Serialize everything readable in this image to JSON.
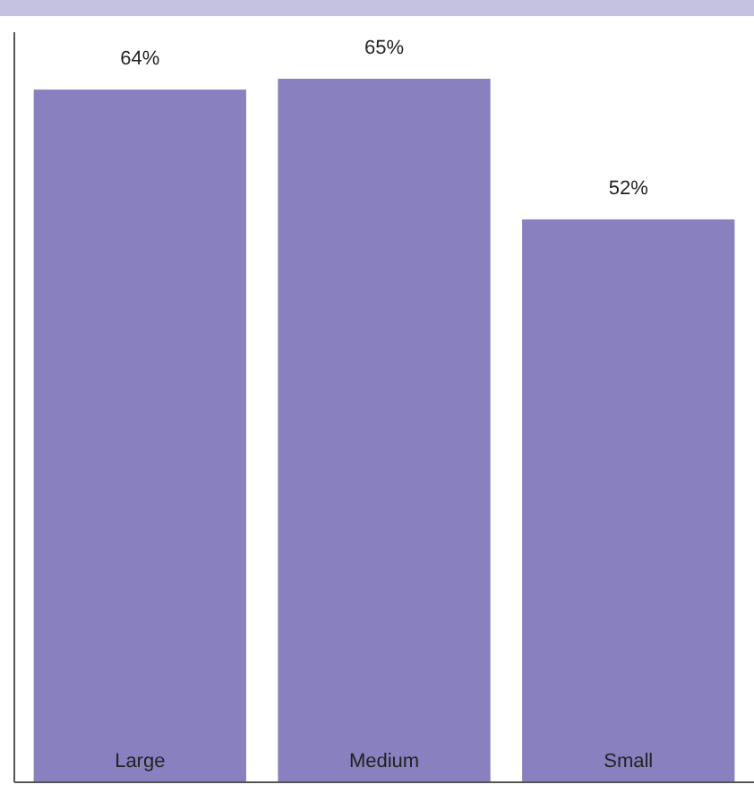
{
  "chart_data": {
    "type": "bar",
    "categories": [
      "Large",
      "Medium",
      "Small"
    ],
    "values": [
      64,
      65,
      52
    ],
    "value_labels": [
      "64%",
      "65%",
      "52%"
    ],
    "color": "#8880bf"
  }
}
